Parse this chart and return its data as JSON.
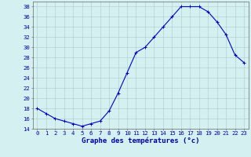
{
  "x": [
    0,
    1,
    2,
    3,
    4,
    5,
    6,
    7,
    8,
    9,
    10,
    11,
    12,
    13,
    14,
    15,
    16,
    17,
    18,
    19,
    20,
    21,
    22,
    23
  ],
  "y": [
    18,
    17,
    16,
    15.5,
    15,
    14.5,
    15,
    15.5,
    17.5,
    21,
    25,
    29,
    30,
    32,
    34,
    36,
    38,
    38,
    38,
    37,
    35,
    32.5,
    28.5,
    27
  ],
  "line_color": "#0000cc",
  "marker": "+",
  "marker_size": 3,
  "bg_color": "#d4f0f0",
  "grid_color": "#aacccc",
  "ylim": [
    14,
    39
  ],
  "xlim": [
    -0.5,
    23.5
  ],
  "yticks": [
    14,
    16,
    18,
    20,
    22,
    24,
    26,
    28,
    30,
    32,
    34,
    36,
    38
  ],
  "xticks": [
    0,
    1,
    2,
    3,
    4,
    5,
    6,
    7,
    8,
    9,
    10,
    11,
    12,
    13,
    14,
    15,
    16,
    17,
    18,
    19,
    20,
    21,
    22,
    23
  ],
  "tick_color": "#0000aa",
  "tick_fontsize": 5.2,
  "xlabel": "Graphe des températures (°c)",
  "xlabel_fontsize": 6.5,
  "xlabel_color": "#0000aa"
}
